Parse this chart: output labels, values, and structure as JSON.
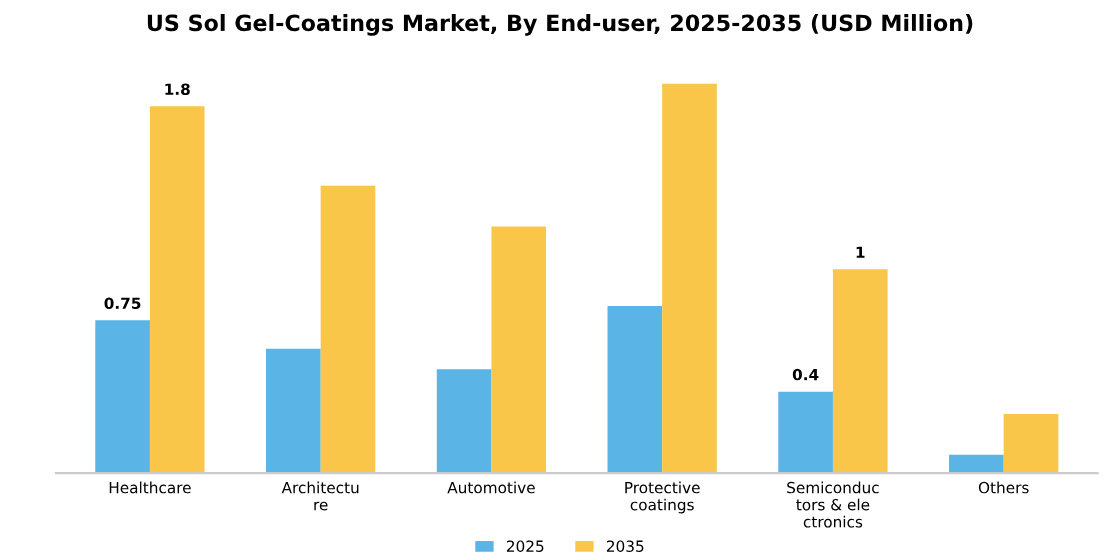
{
  "chart_data": {
    "type": "bar",
    "title": "US Sol Gel-Coatings Market, By End-user, 2025-2035 (USD Million)",
    "categories": [
      "Healthcare",
      "Architectu\nre",
      "Automotive",
      "Protective\ncoatings",
      "Semiconduc\ntors & ele\nctronics",
      "Others"
    ],
    "series": [
      {
        "name": "2025",
        "color": "#5ab4e5",
        "values": [
          0.75,
          0.61,
          0.51,
          0.82,
          0.4,
          0.09
        ],
        "value_labels": [
          "0.75",
          null,
          null,
          null,
          "0.4",
          null
        ]
      },
      {
        "name": "2035",
        "color": "#f9c64a",
        "values": [
          1.8,
          1.41,
          1.21,
          1.91,
          1,
          0.29
        ],
        "value_labels": [
          "1.8",
          null,
          null,
          null,
          "1",
          null
        ]
      }
    ],
    "legend": "bottom",
    "grid": false
  }
}
